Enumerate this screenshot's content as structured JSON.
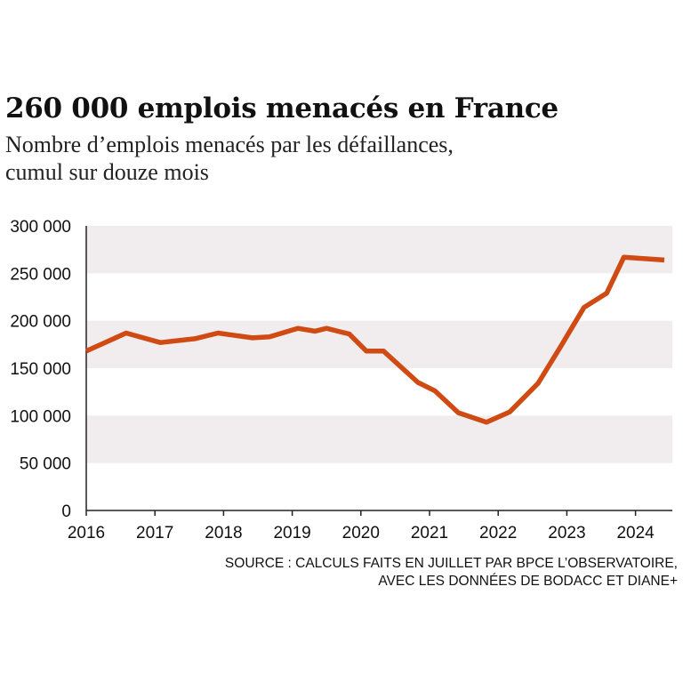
{
  "title": "260 000 emplois menacés en France",
  "subtitle": [
    "Nombre d’emplois menacés par les défaillances,",
    "cumul sur douze mois"
  ],
  "source": [
    "SOURCE : CALCULS FAITS EN JUILLET PAR BPCE L’OBSERVATOIRE,",
    "AVEC LES DONNÉES DE BODACC ET DIANE+"
  ],
  "colors": {
    "line": "#d04a13",
    "band": "#f1eced",
    "axis": "#222222",
    "text": "#111111"
  },
  "chart_data": {
    "type": "line",
    "title": "260 000 emplois menacés en France",
    "xlim": [
      2016,
      2024.45
    ],
    "ylim": [
      0,
      300000
    ],
    "yticks": [
      0,
      50000,
      100000,
      150000,
      200000,
      250000,
      300000
    ],
    "ytick_labels": [
      "0",
      "50 000",
      "100 000",
      "150 000",
      "200 000",
      "250 000",
      "300 000"
    ],
    "xticks": [
      2016,
      2017,
      2018,
      2019,
      2020,
      2021,
      2022,
      2023,
      2024
    ],
    "xtick_labels": [
      "2016",
      "2017",
      "2018",
      "2019",
      "2020",
      "2021",
      "2022",
      "2023",
      "2024"
    ],
    "grid": "alternating horizontal bands",
    "series": [
      {
        "x": [
          2016.0,
          2016.58,
          2017.08,
          2017.58,
          2017.92,
          2018.42,
          2018.67,
          2019.08,
          2019.33,
          2019.5,
          2019.83,
          2020.08,
          2020.33,
          2020.83,
          2021.08,
          2021.42,
          2021.83,
          2022.17,
          2022.58,
          2022.92,
          2023.25,
          2023.58,
          2023.83,
          2024.42
        ],
        "y": [
          168000,
          187000,
          177000,
          181000,
          187000,
          182000,
          183000,
          192000,
          189000,
          192000,
          186000,
          168000,
          168000,
          135000,
          126000,
          103000,
          93000,
          104000,
          134000,
          174000,
          214000,
          229000,
          267000,
          264000
        ]
      }
    ]
  }
}
